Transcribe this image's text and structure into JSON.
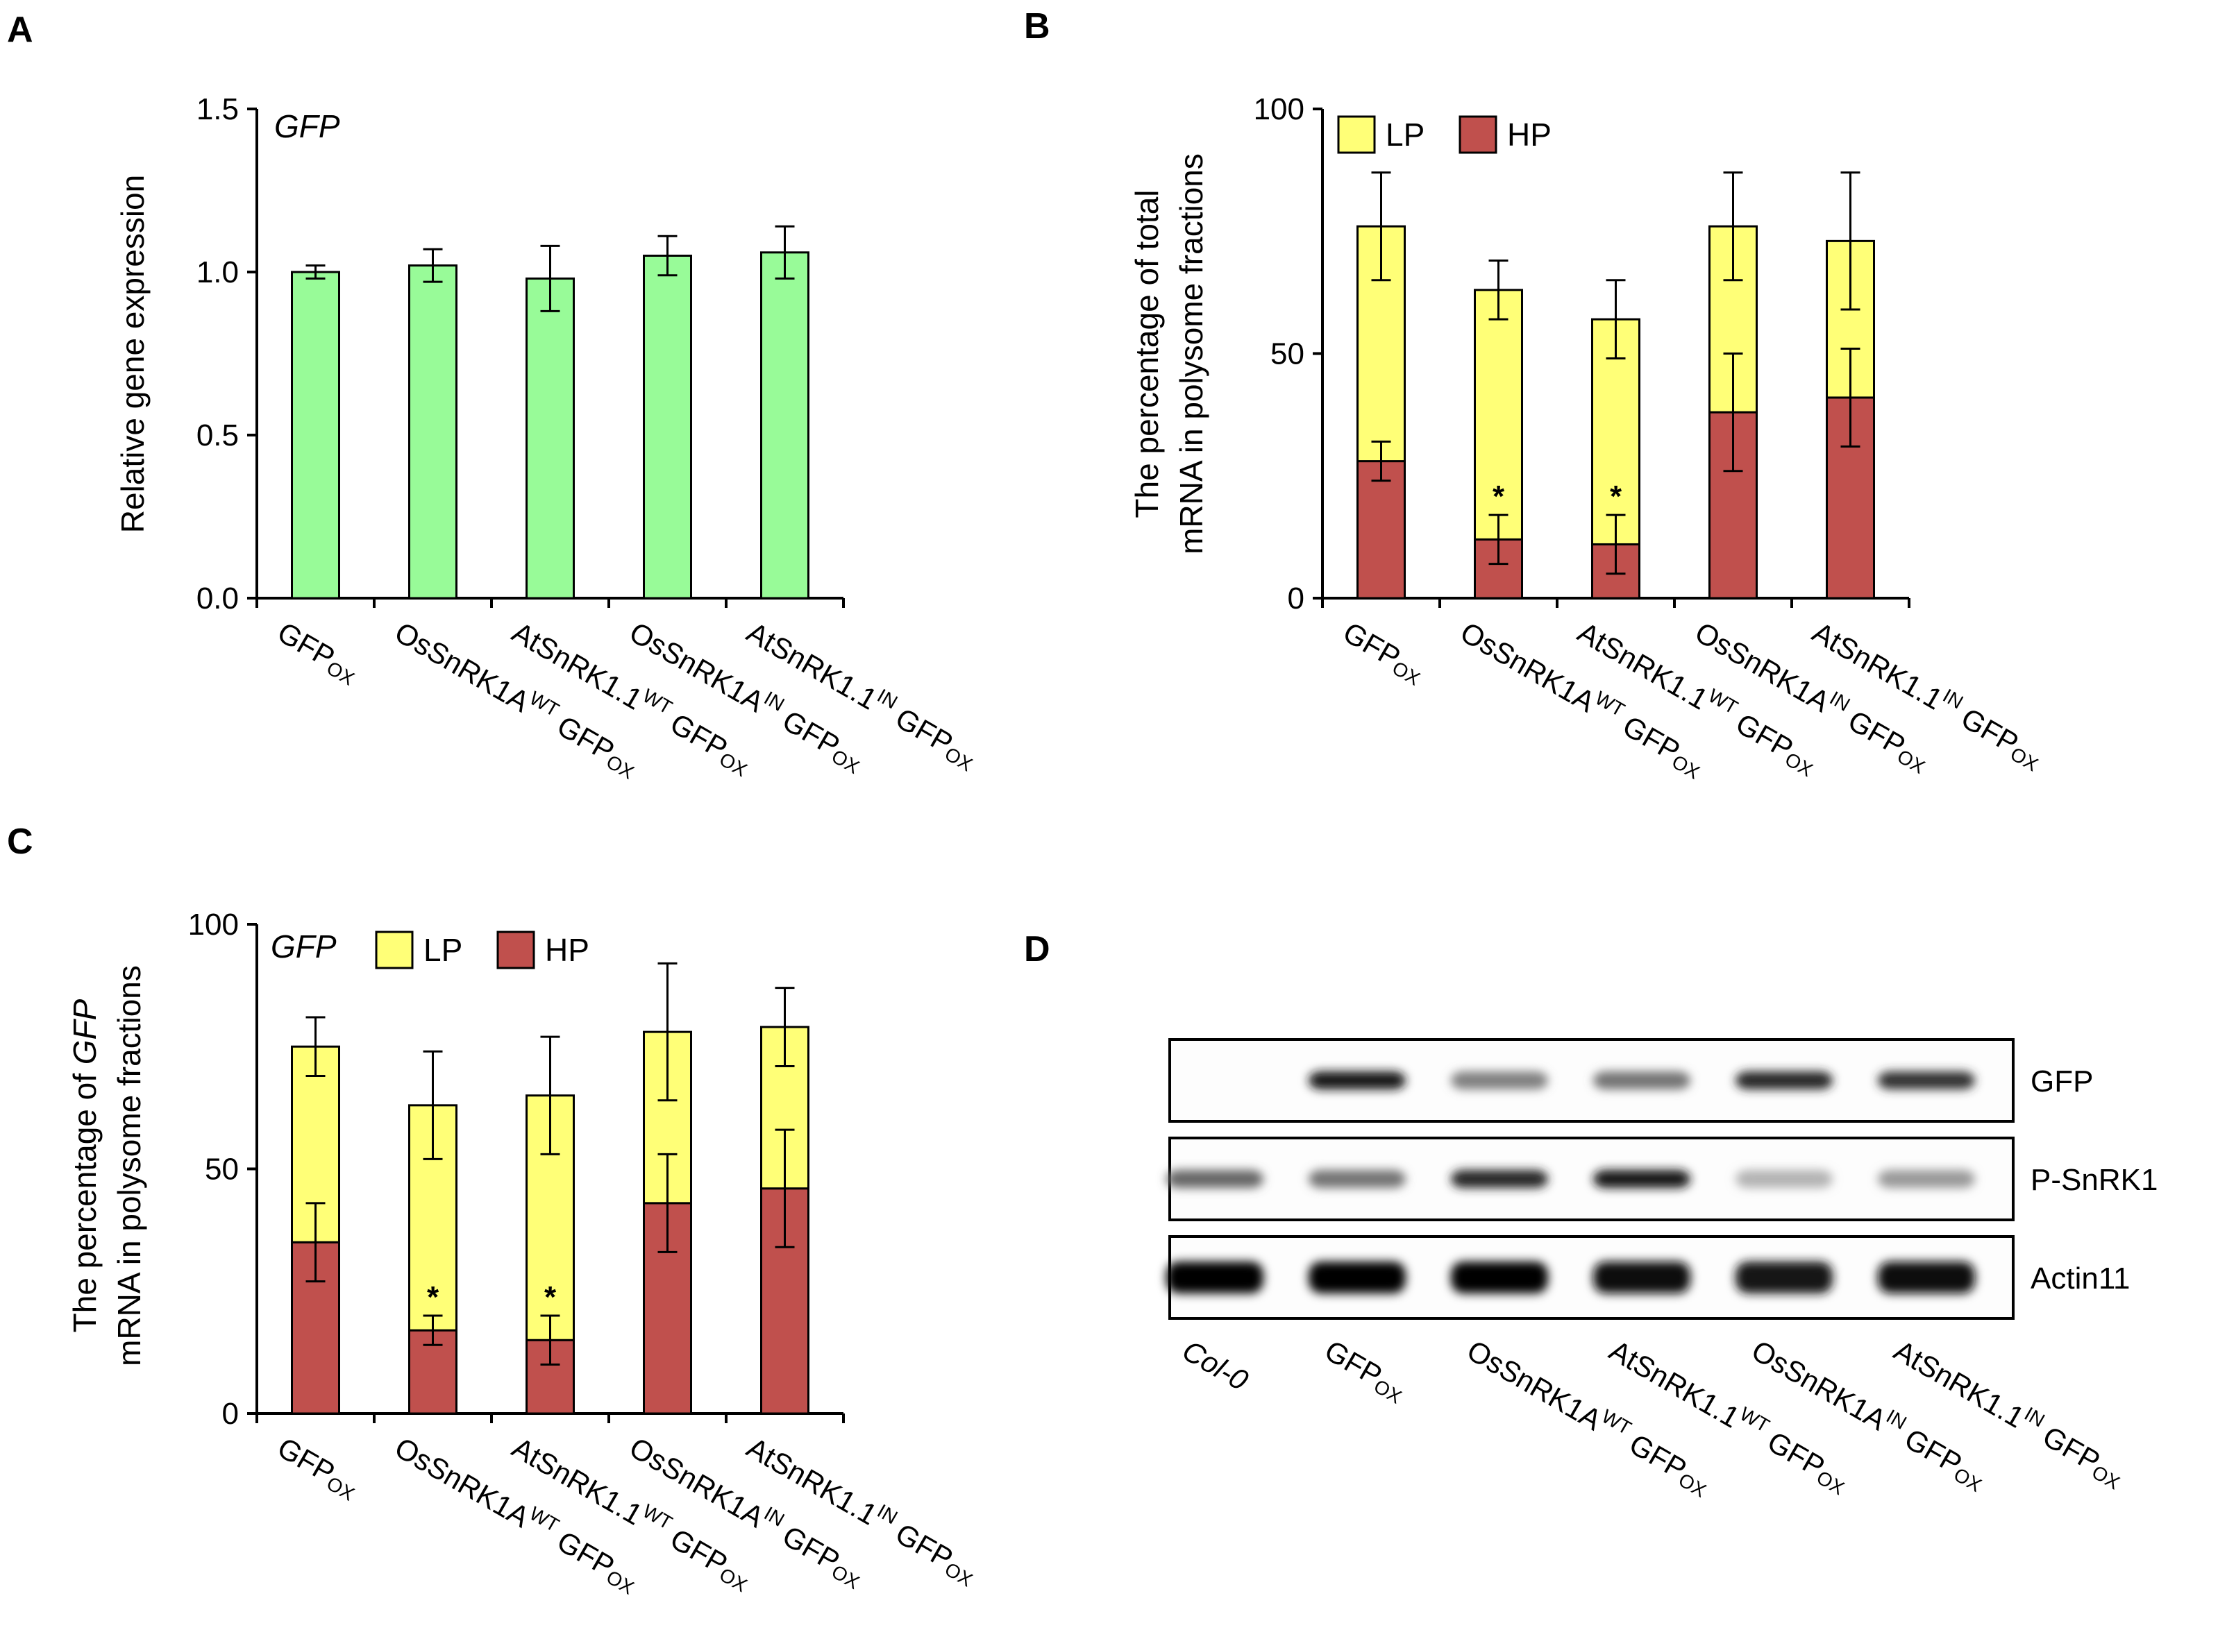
{
  "colors": {
    "green": "#98FB98",
    "lp": "#FFFF77",
    "hp": "#C0504D",
    "axis": "#000000"
  },
  "chart_data": [
    {
      "panel": "A",
      "type": "bar",
      "gene_label": "GFP",
      "ylabel": "Relative gene expression",
      "ylim": [
        0,
        1.5
      ],
      "yticks": [
        "0.0",
        "0.5",
        "1.0",
        "1.5"
      ],
      "categories": [
        {
          "main": "GFP",
          "sup1": "",
          "mid": "",
          "sub": "OX"
        },
        {
          "main": "OsSnRK1A",
          "sup1": "WT",
          "mid": " GFP",
          "sub": "OX"
        },
        {
          "main": "AtSnRK1.1",
          "sup1": "WT",
          "mid": " GFP",
          "sub": "OX"
        },
        {
          "main": "OsSnRK1A",
          "sup1": "IN",
          "mid": " GFP",
          "sub": "OX"
        },
        {
          "main": "AtSnRK1.1",
          "sup1": "IN",
          "mid": " GFP",
          "sub": "OX"
        }
      ],
      "values": [
        1.0,
        1.02,
        0.98,
        1.05,
        1.06
      ],
      "errors": [
        0.02,
        0.05,
        0.1,
        0.06,
        0.08
      ]
    },
    {
      "panel": "B",
      "type": "stacked_bar",
      "ylabel_line1": "The  percentage of total",
      "ylabel_line2": "mRNA in polysome fractions",
      "ylim": [
        0,
        100
      ],
      "yticks": [
        "0",
        "50",
        "100"
      ],
      "legend": [
        "LP",
        "HP"
      ],
      "categories": [
        {
          "main": "GFP",
          "sup1": "",
          "mid": "",
          "sub": "OX"
        },
        {
          "main": "OsSnRK1A",
          "sup1": "WT",
          "mid": " GFP",
          "sub": "OX"
        },
        {
          "main": "AtSnRK1.1",
          "sup1": "WT",
          "mid": " GFP",
          "sub": "OX"
        },
        {
          "main": "OsSnRK1A",
          "sup1": "IN",
          "mid": " GFP",
          "sub": "OX"
        },
        {
          "main": "AtSnRK1.1",
          "sup1": "IN",
          "mid": " GFP",
          "sub": "OX"
        }
      ],
      "series": [
        {
          "name": "HP",
          "values": [
            28,
            12,
            11,
            38,
            41
          ],
          "errors": [
            4,
            5,
            6,
            12,
            10
          ]
        },
        {
          "name": "LP",
          "values": [
            48,
            51,
            46,
            38,
            32
          ],
          "errors": [
            11,
            6,
            8,
            11,
            14
          ]
        }
      ],
      "significance": [
        "",
        "*",
        "*",
        "",
        ""
      ]
    },
    {
      "panel": "C",
      "type": "stacked_bar",
      "gene_label": "GFP",
      "ylabel_line1_pre": "The  percentage of ",
      "ylabel_line1_ital": "GFP",
      "ylabel_line2": "mRNA in polysome fractions",
      "ylim": [
        0,
        100
      ],
      "yticks": [
        "0",
        "50",
        "100"
      ],
      "legend": [
        "LP",
        "HP"
      ],
      "categories": [
        {
          "main": "GFP",
          "sup1": "",
          "mid": "",
          "sub": "OX"
        },
        {
          "main": "OsSnRK1A",
          "sup1": "WT",
          "mid": " GFP",
          "sub": "OX"
        },
        {
          "main": "AtSnRK1.1",
          "sup1": "WT",
          "mid": " GFP",
          "sub": "OX"
        },
        {
          "main": "OsSnRK1A",
          "sup1": "IN",
          "mid": " GFP",
          "sub": "OX"
        },
        {
          "main": "AtSnRK1.1",
          "sup1": "IN",
          "mid": " GFP",
          "sub": "OX"
        }
      ],
      "series": [
        {
          "name": "HP",
          "values": [
            35,
            17,
            15,
            43,
            46
          ],
          "errors": [
            8,
            3,
            5,
            10,
            12
          ]
        },
        {
          "name": "LP",
          "values": [
            40,
            46,
            50,
            35,
            33
          ],
          "errors": [
            6,
            11,
            12,
            14,
            8
          ]
        }
      ],
      "significance": [
        "",
        "*",
        "*",
        "",
        ""
      ]
    }
  ],
  "western": {
    "panel": "D",
    "rows": [
      "GFP",
      "P-SnRK1",
      "Actin11"
    ],
    "lanes": [
      {
        "main": "Col-0",
        "sup1": "",
        "mid": "",
        "sub": "",
        "italic": true
      },
      {
        "main": "GFP",
        "sup1": "",
        "mid": "",
        "sub": "OX",
        "italic": false
      },
      {
        "main": "OsSnRK1A",
        "sup1": "WT",
        "mid": " GFP",
        "sub": "OX",
        "italic": false
      },
      {
        "main": "AtSnRK1.1",
        "sup1": "WT",
        "mid": " GFP",
        "sub": "OX",
        "italic": false
      },
      {
        "main": "OsSnRK1A",
        "sup1": "IN",
        "mid": " GFP",
        "sub": "OX",
        "italic": false
      },
      {
        "main": "AtSnRK1.1",
        "sup1": "IN",
        "mid": " GFP",
        "sub": "OX",
        "italic": false
      }
    ],
    "band_intensity": [
      [
        0,
        0.9,
        0.5,
        0.55,
        0.85,
        0.8
      ],
      [
        0.6,
        0.55,
        0.85,
        0.9,
        0.3,
        0.4
      ],
      [
        1,
        1,
        1,
        0.95,
        0.9,
        0.95
      ]
    ]
  }
}
